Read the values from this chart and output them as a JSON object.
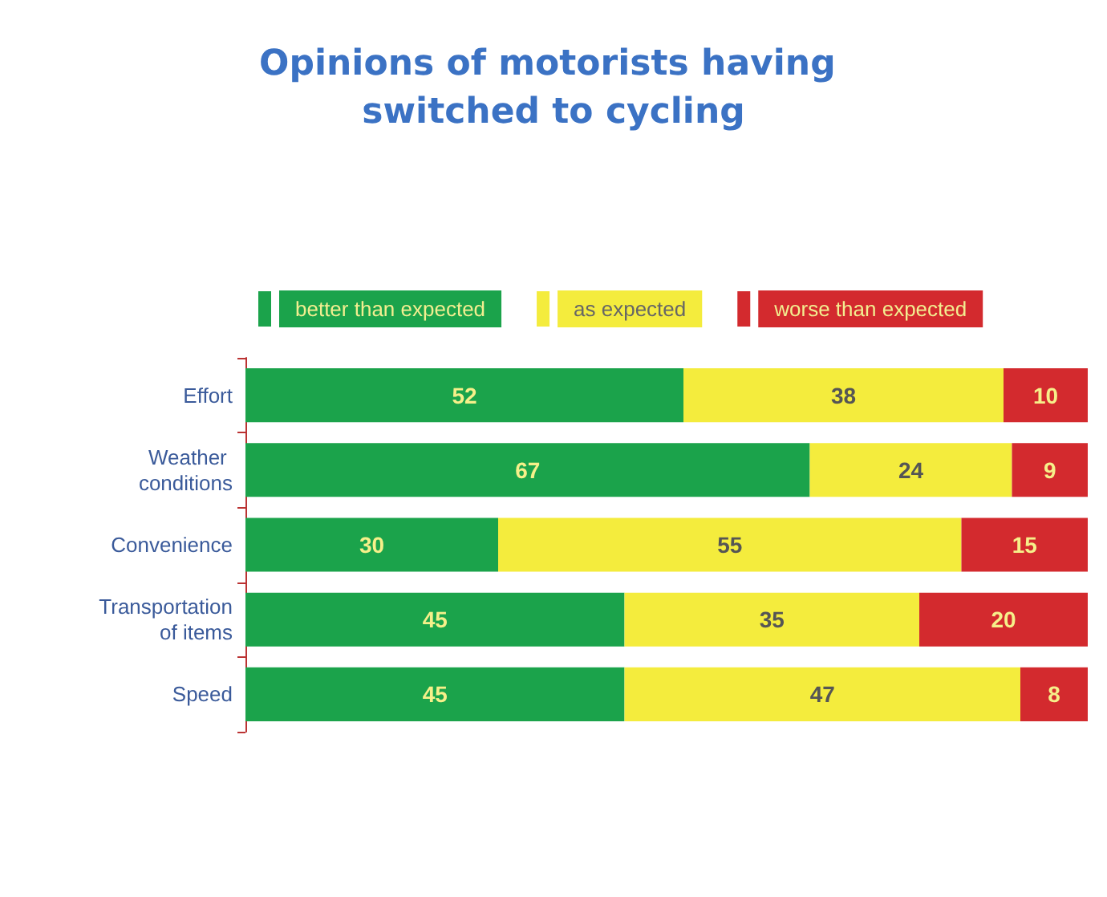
{
  "chart_data": {
    "type": "bar",
    "orientation": "horizontal",
    "stacked": true,
    "title": "Opinions of motorists having switched to cycling",
    "categories": [
      "Effort",
      "Weather conditions",
      "Convenience",
      "Transportation of items",
      "Speed"
    ],
    "series": [
      {
        "name": "better than expected",
        "color": "#1ba34b",
        "values": [
          52,
          67,
          30,
          45,
          45
        ]
      },
      {
        "name": "as expected",
        "color": "#f4ec3d",
        "values": [
          38,
          24,
          55,
          35,
          47
        ]
      },
      {
        "name": "worse than expected",
        "color": "#d32a2e",
        "values": [
          10,
          9,
          15,
          20,
          8
        ]
      }
    ],
    "xlim": [
      0,
      100
    ],
    "tick_labels": "y",
    "data_labels": true,
    "legend": "top"
  }
}
